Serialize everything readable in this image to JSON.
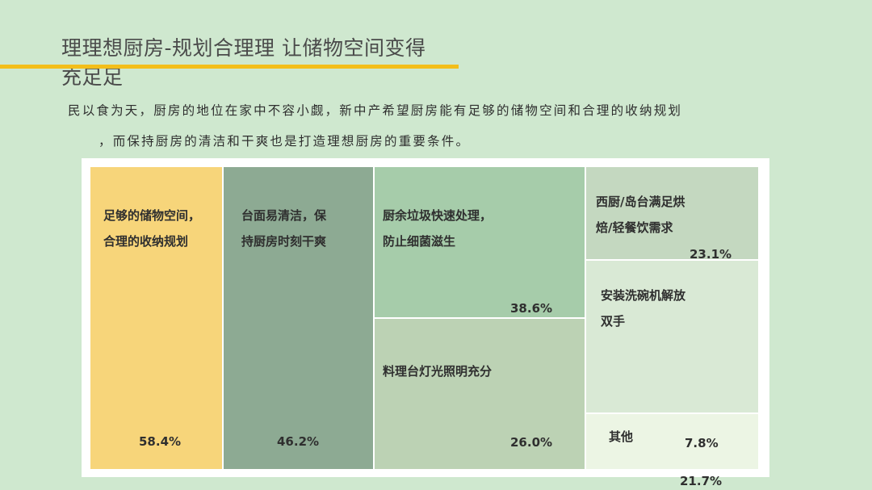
{
  "title": "理理想厨房-规划合理理 让储物空间变得充足足",
  "intro": {
    "line1": "民以食为天，厨房的地位在家中不容小觑，新中产希望厨房能有足够的储物空间和合理的收纳规划",
    "line2": "，而保持厨房的清洁和干爽也是打造理想厨房的重要条件。"
  },
  "colors": {
    "background": "#cfe8cf",
    "accent": "#f3be1a",
    "tiles": [
      "#f7d57a",
      "#8daa93",
      "#a6ccaa",
      "#bcd2b4",
      "#c4d8c0",
      "#d9e9d5",
      "#ecf5e4"
    ]
  },
  "chart_data": {
    "type": "treemap",
    "title": "",
    "items": [
      {
        "label_lines": [
          "足够的储物空间，",
          "合理的收纳规划"
        ],
        "value": 58.4,
        "value_label": "58.4%"
      },
      {
        "label_lines": [
          "台面易清洁，保",
          "持厨房时刻干爽"
        ],
        "value": 46.2,
        "value_label": "46.2%"
      },
      {
        "label_lines": [
          "厨余垃圾快速处理，",
          "防止细菌滋生"
        ],
        "value": 38.6,
        "value_label": "38.6%"
      },
      {
        "label_lines": [
          "料理台灯光照明充分"
        ],
        "value": 26.0,
        "value_label": "26.0%"
      },
      {
        "label_lines": [
          "西厨/岛台满足烘",
          "焙/轻餐饮需求"
        ],
        "value": 23.1,
        "value_label": "23.1%"
      },
      {
        "label_lines": [
          "安装洗碗机解放",
          "双手"
        ],
        "value": 21.7,
        "value_label": "21.7%"
      },
      {
        "label_lines": [
          "其他"
        ],
        "value": 7.8,
        "value_label": "7.8%"
      }
    ]
  }
}
